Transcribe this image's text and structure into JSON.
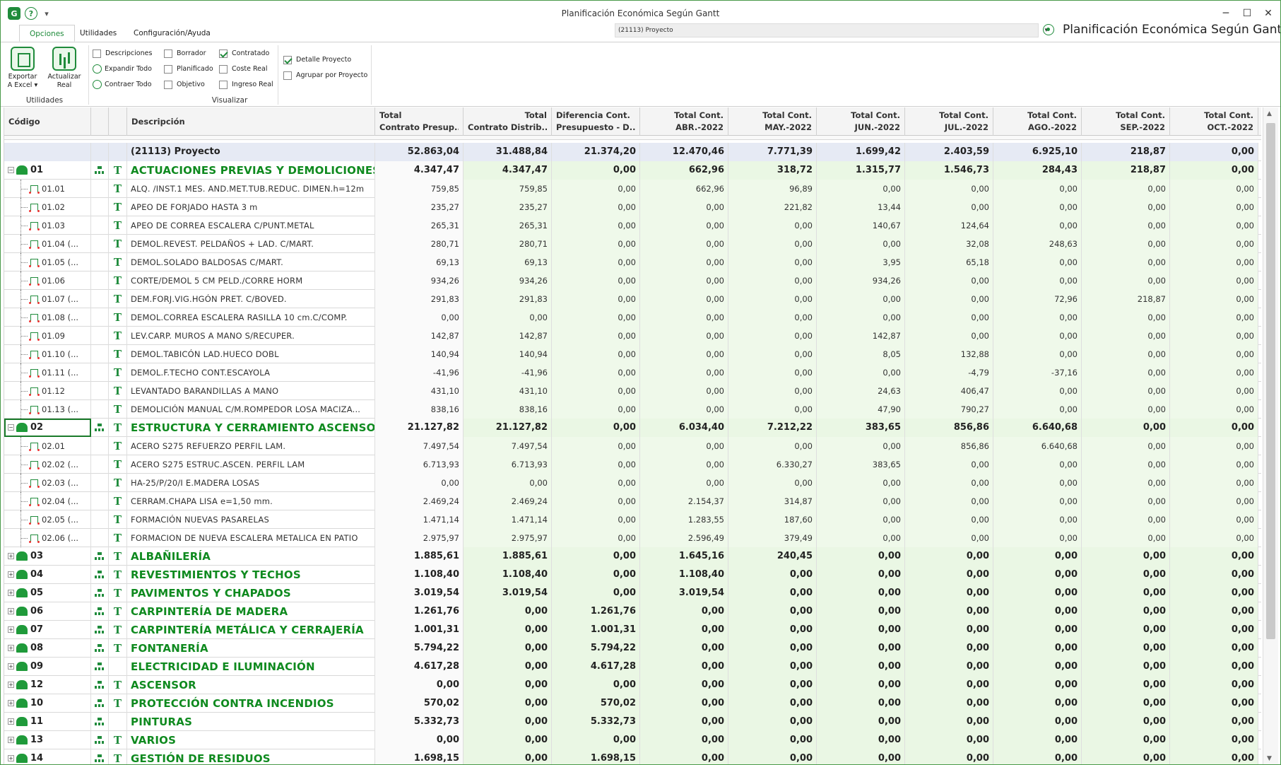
{
  "window": {
    "title": "Planificación Económica Según Gantt",
    "quick_icon_g": "G",
    "quick_icon_help": "?",
    "quick_menu": "▾",
    "minimize": "─",
    "maximize": "☐",
    "close": "✕"
  },
  "tabs": [
    {
      "label": "Opciones"
    },
    {
      "label": "Utilidades"
    },
    {
      "label": "Configuración/Ayuda"
    }
  ],
  "project_combo": {
    "value": "(21113) Proyecto",
    "arrow": "▾"
  },
  "app_caption": "Planificación Económica Según Gantt",
  "ribbon": {
    "export_label_1": "Exportar",
    "export_label_2": "A Excel ▾",
    "update_label_1": "Actualizar",
    "update_label_2": "Real",
    "group_utilidades": "Utilidades",
    "group_visualizar": "Visualizar",
    "descripciones": "Descripciones",
    "expandir": "Expandir Todo",
    "contraer": "Contraer Todo",
    "borrador": "Borrador",
    "planificado": "Planificado",
    "objetivo": "Objetivo",
    "contratado": "Contratado",
    "coste_real": "Coste Real",
    "ingreso_real": "Ingreso Real",
    "detalle_proyecto": "Detalle Proyecto",
    "agrupar_proyecto": "Agrupar por Proyecto",
    "checked": {
      "contratado": true,
      "detalle_proyecto": true
    }
  },
  "columns": {
    "codigo": "Código",
    "descripcion": "Descripción",
    "money": [
      {
        "l1": "Total",
        "l2": "Contrato Presup..."
      },
      {
        "l1": "Total",
        "l2": "Contrato Distrib..."
      },
      {
        "l1": "Diferencia Cont.",
        "l2": "Presupuesto - D..."
      },
      {
        "l1": "Total Cont.",
        "l2": "ABR.-2022"
      },
      {
        "l1": "Total Cont.",
        "l2": "MAY.-2022"
      },
      {
        "l1": "Total Cont.",
        "l2": "JUN.-2022"
      },
      {
        "l1": "Total Cont.",
        "l2": "JUL.-2022"
      },
      {
        "l1": "Total Cont.",
        "l2": "AGO.-2022"
      },
      {
        "l1": "Total Cont.",
        "l2": "SEP.-2022"
      },
      {
        "l1": "Total Cont.",
        "l2": "OCT.-2022"
      }
    ]
  },
  "total_row": {
    "desc": "(21113) Proyecto",
    "values": [
      "52.863,04",
      "31.488,84",
      "21.374,20",
      "12.470,46",
      "7.771,39",
      "1.699,42",
      "2.403,59",
      "6.925,10",
      "218,87",
      "0,00"
    ]
  },
  "rows": [
    {
      "type": "group",
      "code": "01",
      "expanded": true,
      "org": true,
      "t": true,
      "desc": "ACTUACIONES PREVIAS Y DEMOLICIONES",
      "values": [
        "4.347,47",
        "4.347,47",
        "0,00",
        "662,96",
        "318,72",
        "1.315,77",
        "1.546,73",
        "284,43",
        "218,87",
        "0,00"
      ]
    },
    {
      "type": "item",
      "code": "01.01",
      "desc": "ALQ. /INST.1 MES. AND.MET.TUB.REDUC. DIMEN.h=12m",
      "values": [
        "759,85",
        "759,85",
        "0,00",
        "662,96",
        "96,89",
        "0,00",
        "0,00",
        "0,00",
        "0,00",
        "0,00"
      ]
    },
    {
      "type": "item",
      "code": "01.02",
      "desc": "APEO DE FORJADO HASTA 3 m",
      "values": [
        "235,27",
        "235,27",
        "0,00",
        "0,00",
        "221,82",
        "13,44",
        "0,00",
        "0,00",
        "0,00",
        "0,00"
      ]
    },
    {
      "type": "item",
      "code": "01.03",
      "desc": "APEO DE CORREA ESCALERA C/PUNT.METAL",
      "values": [
        "265,31",
        "265,31",
        "0,00",
        "0,00",
        "0,00",
        "140,67",
        "124,64",
        "0,00",
        "0,00",
        "0,00"
      ]
    },
    {
      "type": "item",
      "code": "01.04 (...",
      "desc": "DEMOL.REVEST. PELDAÑOS + LAD. C/MART.",
      "values": [
        "280,71",
        "280,71",
        "0,00",
        "0,00",
        "0,00",
        "0,00",
        "32,08",
        "248,63",
        "0,00",
        "0,00"
      ]
    },
    {
      "type": "item",
      "code": "01.05 (...",
      "desc": "DEMOL.SOLADO BALDOSAS C/MART.",
      "values": [
        "69,13",
        "69,13",
        "0,00",
        "0,00",
        "0,00",
        "3,95",
        "65,18",
        "0,00",
        "0,00",
        "0,00"
      ]
    },
    {
      "type": "item",
      "code": "01.06",
      "desc": "CORTE/DEMOL 5 CM PELD./CORRE HORM",
      "values": [
        "934,26",
        "934,26",
        "0,00",
        "0,00",
        "0,00",
        "934,26",
        "0,00",
        "0,00",
        "0,00",
        "0,00"
      ]
    },
    {
      "type": "item",
      "code": "01.07 (...",
      "desc": "DEM.FORJ.VIG.HGÓN PRET. C/BOVED.",
      "values": [
        "291,83",
        "291,83",
        "0,00",
        "0,00",
        "0,00",
        "0,00",
        "0,00",
        "72,96",
        "218,87",
        "0,00"
      ]
    },
    {
      "type": "item",
      "code": "01.08 (...",
      "desc": "DEMOL.CORREA ESCALERA RASILLA 10 cm.C/COMP.",
      "values": [
        "0,00",
        "0,00",
        "0,00",
        "0,00",
        "0,00",
        "0,00",
        "0,00",
        "0,00",
        "0,00",
        "0,00"
      ]
    },
    {
      "type": "item",
      "code": "01.09",
      "desc": "LEV.CARP. MUROS A MANO S/RECUPER.",
      "values": [
        "142,87",
        "142,87",
        "0,00",
        "0,00",
        "0,00",
        "142,87",
        "0,00",
        "0,00",
        "0,00",
        "0,00"
      ]
    },
    {
      "type": "item",
      "code": "01.10 (...",
      "desc": "DEMOL.TABICÓN LAD.HUECO DOBL",
      "values": [
        "140,94",
        "140,94",
        "0,00",
        "0,00",
        "0,00",
        "8,05",
        "132,88",
        "0,00",
        "0,00",
        "0,00"
      ]
    },
    {
      "type": "item",
      "code": "01.11 (...",
      "desc": "DEMOL.F.TECHO CONT.ESCAYOLA",
      "values": [
        "-41,96",
        "-41,96",
        "0,00",
        "0,00",
        "0,00",
        "0,00",
        "-4,79",
        "-37,16",
        "0,00",
        "0,00"
      ]
    },
    {
      "type": "item",
      "code": "01.12",
      "desc": "LEVANTADO BARANDILLAS A MANO",
      "values": [
        "431,10",
        "431,10",
        "0,00",
        "0,00",
        "0,00",
        "24,63",
        "406,47",
        "0,00",
        "0,00",
        "0,00"
      ]
    },
    {
      "type": "item",
      "code": "01.13 (...",
      "desc": "DEMOLICIÓN MANUAL C/M.ROMPEDOR LOSA MACIZA...",
      "values": [
        "838,16",
        "838,16",
        "0,00",
        "0,00",
        "0,00",
        "47,90",
        "790,27",
        "0,00",
        "0,00",
        "0,00"
      ]
    },
    {
      "type": "group",
      "code": "02",
      "expanded": true,
      "org": true,
      "t": true,
      "selected": true,
      "desc": "ESTRUCTURA Y CERRAMIENTO ASCENSOR",
      "values": [
        "21.127,82",
        "21.127,82",
        "0,00",
        "6.034,40",
        "7.212,22",
        "383,65",
        "856,86",
        "6.640,68",
        "0,00",
        "0,00"
      ]
    },
    {
      "type": "item",
      "code": "02.01",
      "desc": "ACERO S275 REFUERZO PERFIL LAM.",
      "values": [
        "7.497,54",
        "7.497,54",
        "0,00",
        "0,00",
        "0,00",
        "0,00",
        "856,86",
        "6.640,68",
        "0,00",
        "0,00"
      ]
    },
    {
      "type": "item",
      "code": "02.02 (...",
      "desc": "ACERO S275 ESTRUC.ASCEN. PERFIL LAM",
      "values": [
        "6.713,93",
        "6.713,93",
        "0,00",
        "0,00",
        "6.330,27",
        "383,65",
        "0,00",
        "0,00",
        "0,00",
        "0,00"
      ]
    },
    {
      "type": "item",
      "code": "02.03 (...",
      "desc": "HA-25/P/20/I E.MADERA LOSAS",
      "values": [
        "0,00",
        "0,00",
        "0,00",
        "0,00",
        "0,00",
        "0,00",
        "0,00",
        "0,00",
        "0,00",
        "0,00"
      ]
    },
    {
      "type": "item",
      "code": "02.04 (...",
      "desc": "CERRAM.CHAPA LISA e=1,50  mm.",
      "values": [
        "2.469,24",
        "2.469,24",
        "0,00",
        "2.154,37",
        "314,87",
        "0,00",
        "0,00",
        "0,00",
        "0,00",
        "0,00"
      ]
    },
    {
      "type": "item",
      "code": "02.05 (...",
      "desc": "FORMACIÓN NUEVAS PASARELAS",
      "values": [
        "1.471,14",
        "1.471,14",
        "0,00",
        "1.283,55",
        "187,60",
        "0,00",
        "0,00",
        "0,00",
        "0,00",
        "0,00"
      ]
    },
    {
      "type": "item",
      "code": "02.06 (...",
      "desc": "FORMACION DE NUEVA ESCALERA METALICA EN PATIO",
      "values": [
        "2.975,97",
        "2.975,97",
        "0,00",
        "2.596,49",
        "379,49",
        "0,00",
        "0,00",
        "0,00",
        "0,00",
        "0,00"
      ]
    },
    {
      "type": "group",
      "code": "03",
      "expanded": false,
      "org": true,
      "t": true,
      "desc": "ALBAÑILERÍA",
      "values": [
        "1.885,61",
        "1.885,61",
        "0,00",
        "1.645,16",
        "240,45",
        "0,00",
        "0,00",
        "0,00",
        "0,00",
        "0,00"
      ]
    },
    {
      "type": "group",
      "code": "04",
      "expanded": false,
      "org": true,
      "t": true,
      "desc": "REVESTIMIENTOS Y TECHOS",
      "values": [
        "1.108,40",
        "1.108,40",
        "0,00",
        "1.108,40",
        "0,00",
        "0,00",
        "0,00",
        "0,00",
        "0,00",
        "0,00"
      ]
    },
    {
      "type": "group",
      "code": "05",
      "expanded": false,
      "org": true,
      "t": true,
      "desc": "PAVIMENTOS Y CHAPADOS",
      "values": [
        "3.019,54",
        "3.019,54",
        "0,00",
        "3.019,54",
        "0,00",
        "0,00",
        "0,00",
        "0,00",
        "0,00",
        "0,00"
      ]
    },
    {
      "type": "group",
      "code": "06",
      "expanded": false,
      "org": true,
      "t": true,
      "desc": "CARPINTERÍA DE MADERA",
      "values": [
        "1.261,76",
        "0,00",
        "1.261,76",
        "0,00",
        "0,00",
        "0,00",
        "0,00",
        "0,00",
        "0,00",
        "0,00"
      ]
    },
    {
      "type": "group",
      "code": "07",
      "expanded": false,
      "org": true,
      "t": true,
      "desc": "CARPINTERÍA METÁLICA Y CERRAJERÍA",
      "values": [
        "1.001,31",
        "0,00",
        "1.001,31",
        "0,00",
        "0,00",
        "0,00",
        "0,00",
        "0,00",
        "0,00",
        "0,00"
      ]
    },
    {
      "type": "group",
      "code": "08",
      "expanded": false,
      "org": true,
      "t": true,
      "desc": "FONTANERÍA",
      "values": [
        "5.794,22",
        "0,00",
        "5.794,22",
        "0,00",
        "0,00",
        "0,00",
        "0,00",
        "0,00",
        "0,00",
        "0,00"
      ]
    },
    {
      "type": "group",
      "code": "09",
      "expanded": false,
      "org": true,
      "t": false,
      "desc": "ELECTRICIDAD E ILUMINACIÓN",
      "values": [
        "4.617,28",
        "0,00",
        "4.617,28",
        "0,00",
        "0,00",
        "0,00",
        "0,00",
        "0,00",
        "0,00",
        "0,00"
      ]
    },
    {
      "type": "group",
      "code": "12",
      "expanded": false,
      "org": true,
      "t": true,
      "desc": "ASCENSOR",
      "values": [
        "0,00",
        "0,00",
        "0,00",
        "0,00",
        "0,00",
        "0,00",
        "0,00",
        "0,00",
        "0,00",
        "0,00"
      ]
    },
    {
      "type": "group",
      "code": "10",
      "expanded": false,
      "org": true,
      "t": true,
      "desc": "PROTECCIÓN CONTRA INCENDIOS",
      "values": [
        "570,02",
        "0,00",
        "570,02",
        "0,00",
        "0,00",
        "0,00",
        "0,00",
        "0,00",
        "0,00",
        "0,00"
      ]
    },
    {
      "type": "group",
      "code": "11",
      "expanded": false,
      "org": true,
      "t": false,
      "desc": "PINTURAS",
      "values": [
        "5.332,73",
        "0,00",
        "5.332,73",
        "0,00",
        "0,00",
        "0,00",
        "0,00",
        "0,00",
        "0,00",
        "0,00"
      ]
    },
    {
      "type": "group",
      "code": "13",
      "expanded": false,
      "org": true,
      "t": true,
      "desc": "VARIOS",
      "values": [
        "0,00",
        "0,00",
        "0,00",
        "0,00",
        "0,00",
        "0,00",
        "0,00",
        "0,00",
        "0,00",
        "0,00"
      ]
    },
    {
      "type": "group",
      "code": "14",
      "expanded": false,
      "org": true,
      "t": true,
      "desc": "GESTIÓN DE RESIDUOS",
      "values": [
        "1.698,15",
        "0,00",
        "1.698,15",
        "0,00",
        "0,00",
        "0,00",
        "0,00",
        "0,00",
        "0,00",
        "0,00"
      ]
    }
  ],
  "scroll": {
    "up": "▲",
    "down": "▼"
  }
}
